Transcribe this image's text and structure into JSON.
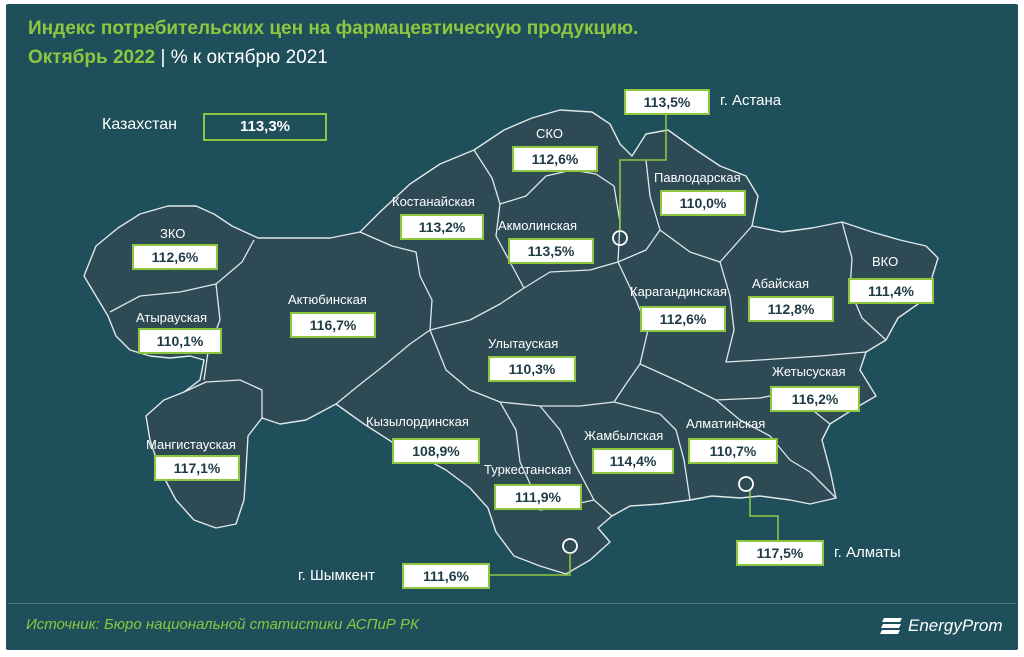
{
  "title": "Индекс потребительских цен на фармацевтическую продукцию.",
  "period": "Октябрь 2022",
  "separator": "|",
  "subtitle": "% к октябрю 2021",
  "country": {
    "label": "Казахстан",
    "value": "113,3%"
  },
  "regions": [
    {
      "key": "zko",
      "label": "ЗКО",
      "value": "112,6%"
    },
    {
      "key": "atyrau",
      "label": "Атырауская",
      "value": "110,1%"
    },
    {
      "key": "mangistau",
      "label": "Мангистауская",
      "value": "117,1%"
    },
    {
      "key": "aktobe",
      "label": "Актюбинская",
      "value": "116,7%"
    },
    {
      "key": "kostanay",
      "label": "Костанайская",
      "value": "113,2%"
    },
    {
      "key": "sko",
      "label": "СКО",
      "value": "112,6%"
    },
    {
      "key": "akmola",
      "label": "Акмолинская",
      "value": "113,5%"
    },
    {
      "key": "pavlodar",
      "label": "Павлодарская",
      "value": "110,0%"
    },
    {
      "key": "karaganda",
      "label": "Карагандинская",
      "value": "112,6%"
    },
    {
      "key": "abai",
      "label": "Абайская",
      "value": "112,8%"
    },
    {
      "key": "vko",
      "label": "ВКО",
      "value": "111,4%"
    },
    {
      "key": "ulytau",
      "label": "Улытауская",
      "value": "110,3%"
    },
    {
      "key": "kyzylorda",
      "label": "Кызылординская",
      "value": "108,9%"
    },
    {
      "key": "zhambyl",
      "label": "Жамбылская",
      "value": "114,4%"
    },
    {
      "key": "almaty_reg",
      "label": "Алматинская",
      "value": "110,7%"
    },
    {
      "key": "zhetysu",
      "label": "Жетысуская",
      "value": "116,2%"
    },
    {
      "key": "turkestan",
      "label": "Туркестанская",
      "value": "111,9%"
    }
  ],
  "cities": [
    {
      "key": "astana",
      "label": "г. Астана",
      "value": "113,5%"
    },
    {
      "key": "almaty",
      "label": "г. Алматы",
      "value": "117,5%"
    },
    {
      "key": "shymkent",
      "label": "г. Шымкент",
      "value": "111,6%"
    }
  ],
  "source": "Источник: Бюро национальной статистики АСПиР РК",
  "logo": {
    "part1": "Energy",
    "part2": "Prom"
  },
  "colors": {
    "background": "#1e4f5a",
    "region_fill": "#2e4a55",
    "border": "#dfe8ea",
    "accent": "#8dc63f"
  }
}
